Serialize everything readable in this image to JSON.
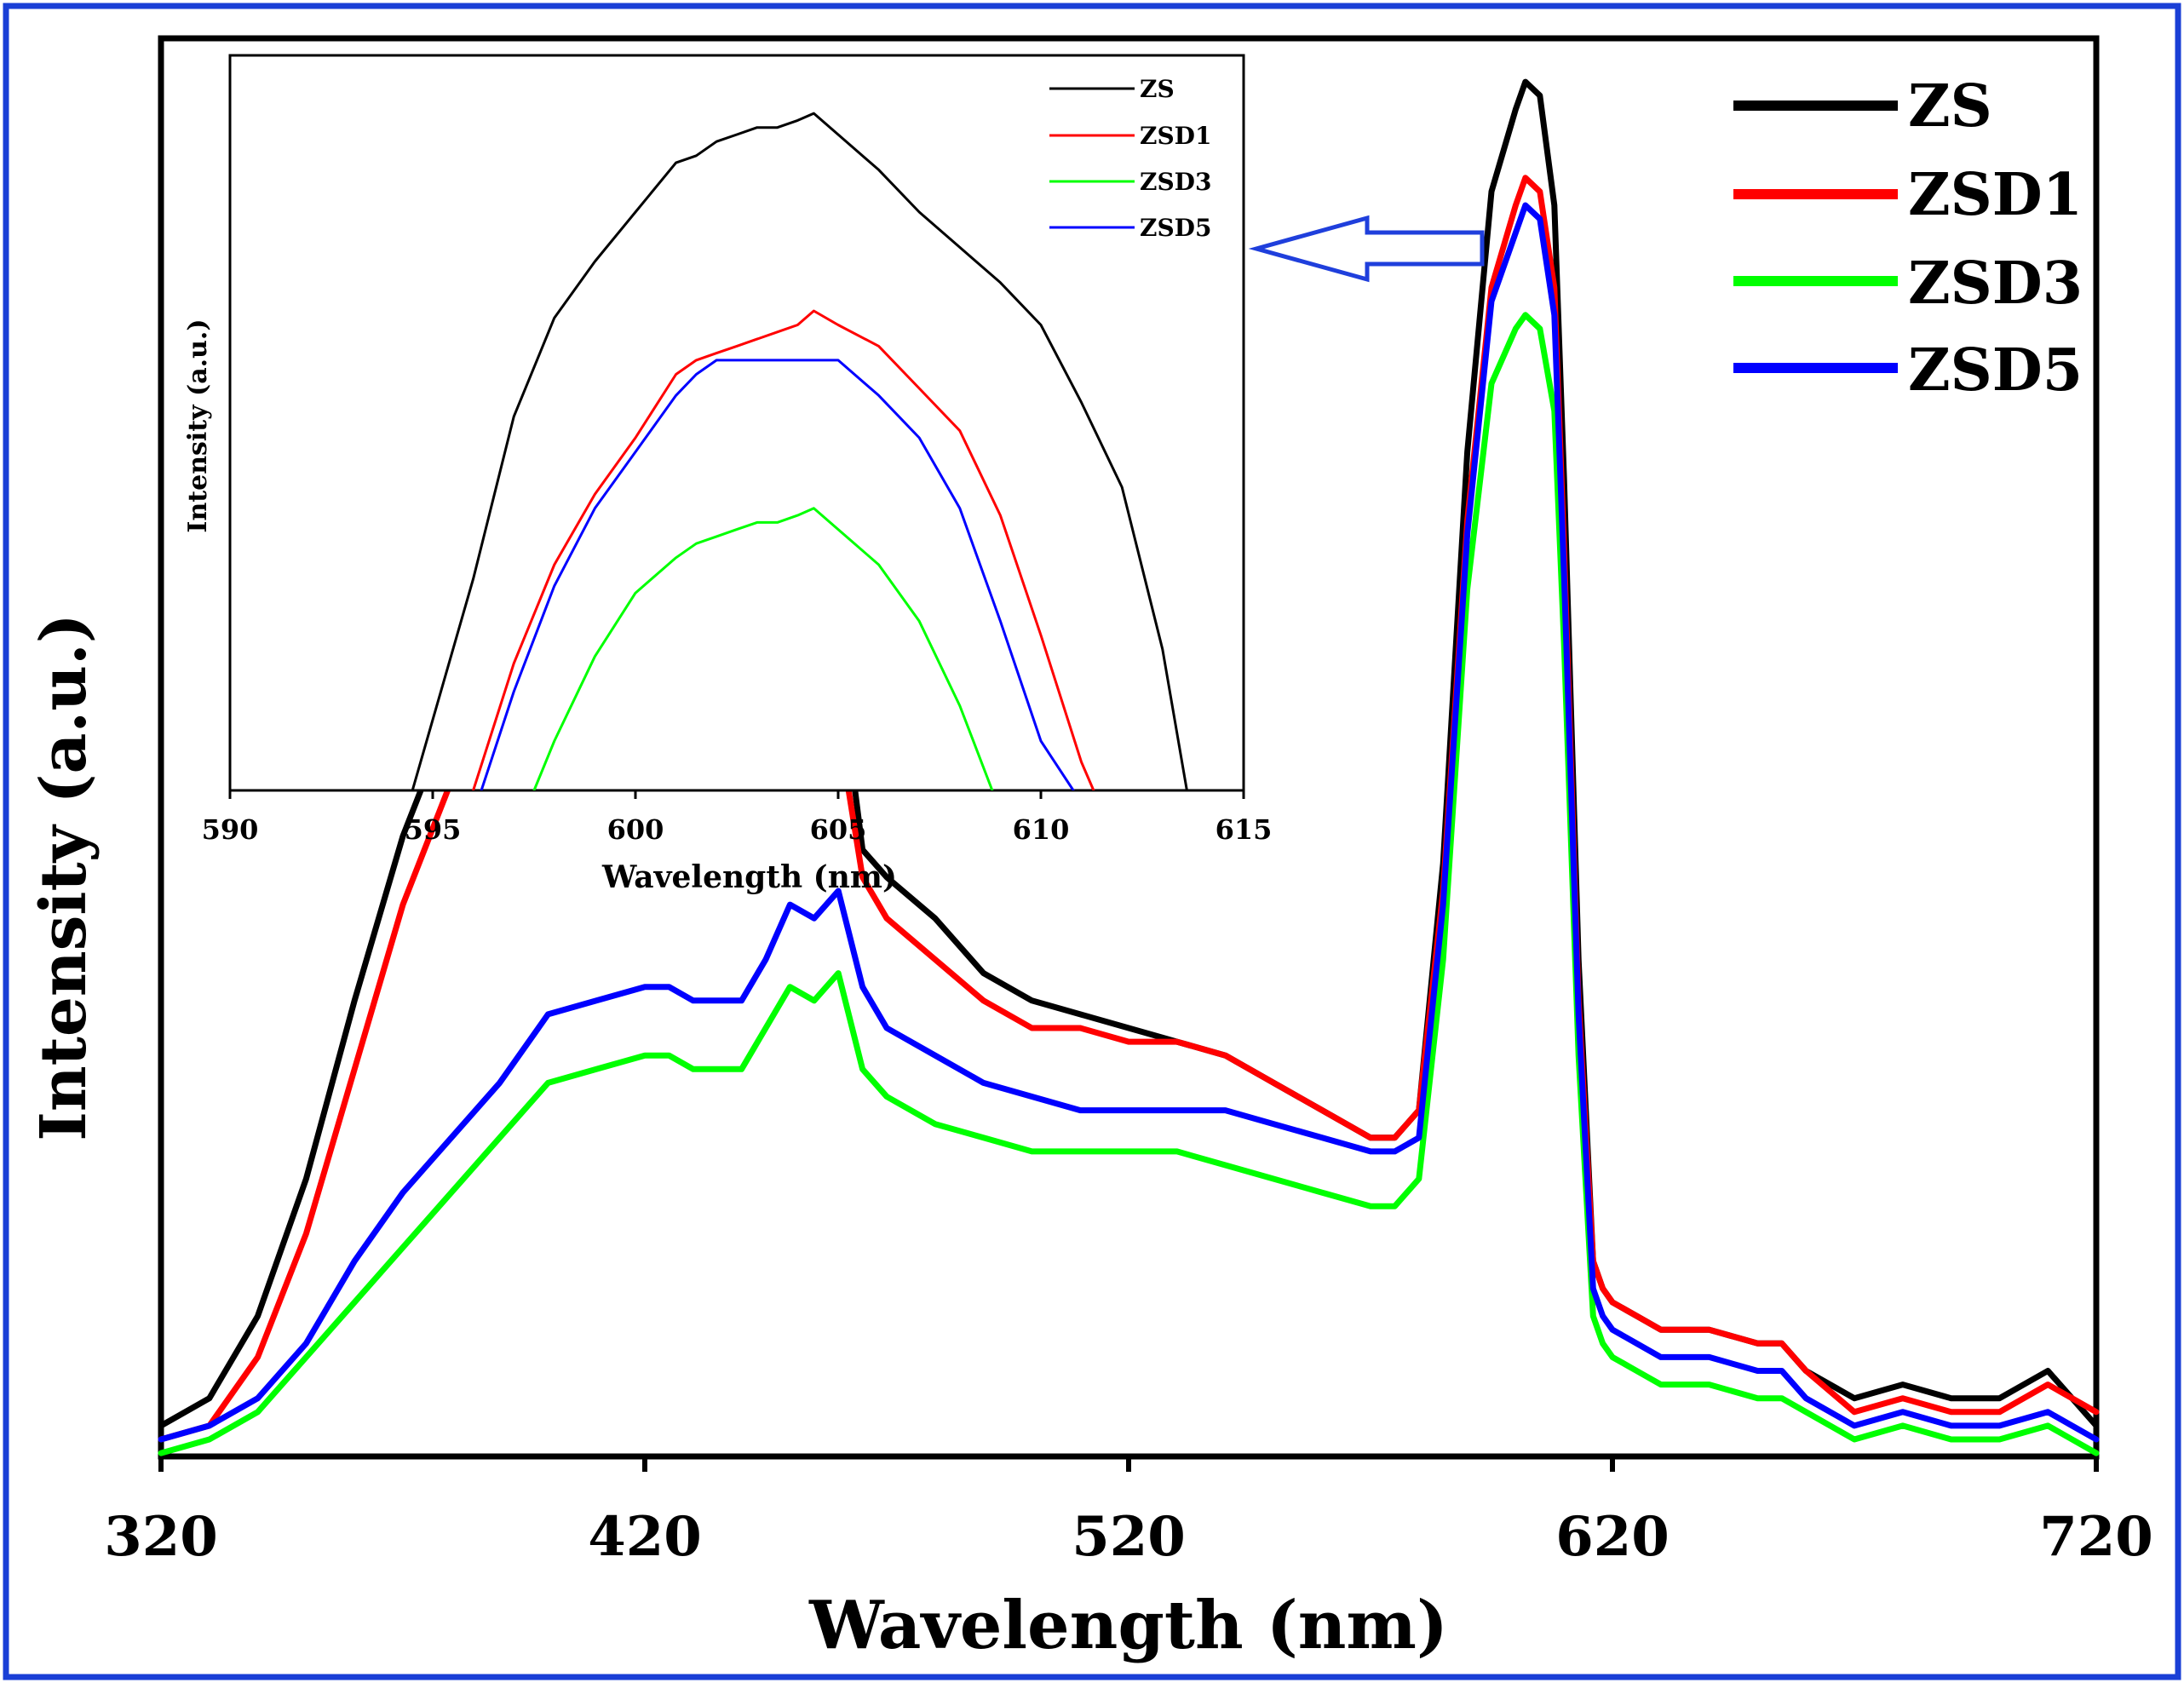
{
  "chart_data": [
    {
      "type": "line",
      "panel": "main",
      "xlabel": "Wavelength (nm)",
      "ylabel": "Intensity (a.u.)",
      "xlim": [
        320,
        720
      ],
      "ylim": [
        0,
        100
      ],
      "xticks": [
        320,
        420,
        520,
        620,
        720
      ],
      "legend_position": "top-right",
      "series": [
        {
          "name": "ZS",
          "color": "#000000",
          "x": [
            320,
            330,
            340,
            350,
            360,
            370,
            380,
            390,
            400,
            410,
            420,
            425,
            430,
            440,
            445,
            450,
            455,
            460,
            465,
            470,
            480,
            490,
            500,
            510,
            520,
            530,
            540,
            550,
            560,
            570,
            575,
            580,
            585,
            590,
            595,
            600,
            602,
            605,
            608,
            610,
            613,
            616,
            618,
            620,
            625,
            630,
            640,
            650,
            655,
            660,
            670,
            680,
            690,
            700,
            710,
            715,
            720
          ],
          "y": [
            1,
            3,
            9,
            19,
            32,
            44,
            53,
            59,
            60,
            59,
            57,
            55,
            55,
            56,
            62,
            60,
            63,
            57,
            43,
            41,
            38,
            34,
            32,
            31,
            30,
            29,
            28,
            26,
            24,
            22,
            22,
            24,
            42,
            72,
            91,
            97,
            99,
            98,
            90,
            70,
            35,
            13,
            11,
            10,
            9,
            8,
            8,
            7,
            7,
            5,
            3,
            4,
            3,
            3,
            5,
            3,
            1
          ]
        },
        {
          "name": "ZSD1",
          "color": "#ff0000",
          "x": [
            320,
            330,
            340,
            350,
            360,
            370,
            380,
            390,
            400,
            410,
            420,
            425,
            430,
            440,
            445,
            450,
            455,
            460,
            465,
            470,
            480,
            490,
            500,
            510,
            520,
            530,
            540,
            550,
            560,
            570,
            575,
            580,
            585,
            590,
            595,
            600,
            602,
            605,
            608,
            610,
            613,
            616,
            618,
            620,
            625,
            630,
            640,
            650,
            655,
            660,
            670,
            680,
            690,
            700,
            710,
            715,
            720
          ],
          "y": [
            0,
            1,
            6,
            15,
            27,
            39,
            48,
            54,
            55,
            55,
            53,
            51,
            51,
            52,
            57,
            55,
            58,
            52,
            41,
            38,
            35,
            32,
            30,
            30,
            29,
            29,
            28,
            26,
            24,
            22,
            22,
            24,
            40,
            67,
            84,
            90,
            92,
            91,
            84,
            65,
            32,
            13,
            11,
            10,
            9,
            8,
            8,
            7,
            7,
            5,
            2,
            3,
            2,
            2,
            4,
            3,
            2
          ]
        },
        {
          "name": "ZSD3",
          "color": "#00ff00",
          "x": [
            320,
            330,
            340,
            350,
            360,
            370,
            380,
            390,
            400,
            410,
            420,
            425,
            430,
            440,
            445,
            450,
            455,
            460,
            465,
            470,
            480,
            490,
            500,
            510,
            520,
            530,
            540,
            550,
            560,
            570,
            575,
            580,
            585,
            590,
            595,
            600,
            602,
            605,
            608,
            610,
            613,
            616,
            618,
            620,
            625,
            630,
            640,
            650,
            655,
            660,
            670,
            680,
            690,
            700,
            710,
            715,
            720
          ],
          "y": [
            -1,
            0,
            2,
            6,
            10,
            14,
            18,
            22,
            26,
            27,
            28,
            28,
            27,
            27,
            30,
            33,
            32,
            34,
            27,
            25,
            23,
            22,
            21,
            21,
            21,
            21,
            20,
            19,
            18,
            17,
            17,
            19,
            35,
            62,
            77,
            81,
            82,
            81,
            75,
            58,
            28,
            9,
            7,
            6,
            5,
            4,
            4,
            3,
            3,
            2,
            0,
            1,
            0,
            0,
            1,
            0,
            -1
          ]
        },
        {
          "name": "ZSD5",
          "color": "#0000ff",
          "x": [
            320,
            330,
            340,
            350,
            360,
            370,
            380,
            390,
            400,
            410,
            420,
            425,
            430,
            440,
            445,
            450,
            455,
            460,
            465,
            470,
            480,
            490,
            500,
            510,
            520,
            530,
            540,
            550,
            560,
            570,
            575,
            580,
            585,
            590,
            595,
            600,
            602,
            605,
            608,
            610,
            613,
            616,
            618,
            620,
            625,
            630,
            640,
            650,
            655,
            660,
            670,
            680,
            690,
            700,
            710,
            715,
            720
          ],
          "y": [
            0,
            1,
            3,
            7,
            13,
            18,
            22,
            26,
            31,
            32,
            33,
            33,
            32,
            32,
            35,
            39,
            38,
            40,
            33,
            30,
            28,
            26,
            25,
            24,
            24,
            24,
            24,
            23,
            22,
            21,
            21,
            22,
            39,
            66,
            83,
            88,
            90,
            89,
            82,
            63,
            31,
            11,
            9,
            8,
            7,
            6,
            6,
            5,
            5,
            3,
            1,
            2,
            1,
            1,
            2,
            1,
            0
          ]
        }
      ]
    },
    {
      "type": "line",
      "panel": "inset",
      "xlabel": "Wavelength (nm)",
      "ylabel": "Intensity (a.u.)",
      "xlim": [
        590,
        615
      ],
      "ylim": [
        0,
        100
      ],
      "xticks": [
        590,
        595,
        600,
        605,
        610,
        615
      ],
      "legend_position": "top-right",
      "series": [
        {
          "name": "ZS",
          "color": "#000000",
          "x": [
            594.5,
            596,
            597,
            598,
            599,
            600,
            601,
            601.5,
            602,
            602.5,
            603,
            603.5,
            604,
            604.4,
            605,
            606,
            607,
            608,
            609,
            610,
            611,
            612,
            613,
            613.6
          ],
          "y": [
            0,
            30,
            53,
            67,
            75,
            82,
            89,
            90,
            92,
            93,
            94,
            94,
            95,
            96,
            93,
            88,
            82,
            77,
            72,
            66,
            55,
            43,
            20,
            0
          ],
          "label": "ZS"
        },
        {
          "name": "ZSD1",
          "color": "#ff0000",
          "x": [
            596,
            597,
            598,
            599,
            600,
            601,
            601.5,
            602,
            602.5,
            603,
            603.5,
            604,
            604.4,
            605,
            606,
            607,
            608,
            609,
            610,
            611,
            611.3
          ],
          "y": [
            0,
            18,
            32,
            42,
            50,
            59,
            61,
            62,
            63,
            64,
            65,
            66,
            68,
            66,
            63,
            57,
            51,
            39,
            22,
            4,
            0
          ],
          "label": "ZSD1"
        },
        {
          "name": "ZSD3",
          "color": "#00ff00",
          "x": [
            597.5,
            598,
            599,
            600,
            601,
            601.5,
            602,
            602.5,
            603,
            603.5,
            604,
            604.4,
            605,
            606,
            607,
            608,
            608.8
          ],
          "y": [
            0,
            7,
            19,
            28,
            33,
            35,
            36,
            37,
            38,
            38,
            39,
            40,
            37,
            32,
            24,
            12,
            0
          ],
          "label": "ZSD3"
        },
        {
          "name": "ZSD5",
          "color": "#0000ff",
          "x": [
            596.2,
            597,
            598,
            599,
            600,
            601,
            601.5,
            602,
            603,
            604,
            605,
            606,
            607,
            608,
            609,
            610,
            610.8
          ],
          "y": [
            0,
            14,
            29,
            40,
            48,
            56,
            59,
            61,
            61,
            61,
            61,
            56,
            50,
            40,
            24,
            7,
            0
          ],
          "label": "ZSD5"
        }
      ]
    }
  ],
  "main": {
    "xlabel": "Wavelength (nm)",
    "ylabel": "Intensity (a.u.)",
    "ticks": [
      "320",
      "420",
      "520",
      "620",
      "720"
    ],
    "legend": [
      "ZS",
      "ZSD1",
      "ZSD3",
      "ZSD5"
    ]
  },
  "inset": {
    "xlabel": "Wavelength (nm)",
    "ylabel": "Intensity (a.u.)",
    "ticks": [
      "590",
      "595",
      "600",
      "605",
      "610",
      "615"
    ],
    "legend": [
      "ZS",
      "ZSD1",
      "ZSD3",
      "ZSD5"
    ]
  },
  "colors": {
    "frame": "#1a3fd6",
    "arrow": "#1f3fdc"
  }
}
